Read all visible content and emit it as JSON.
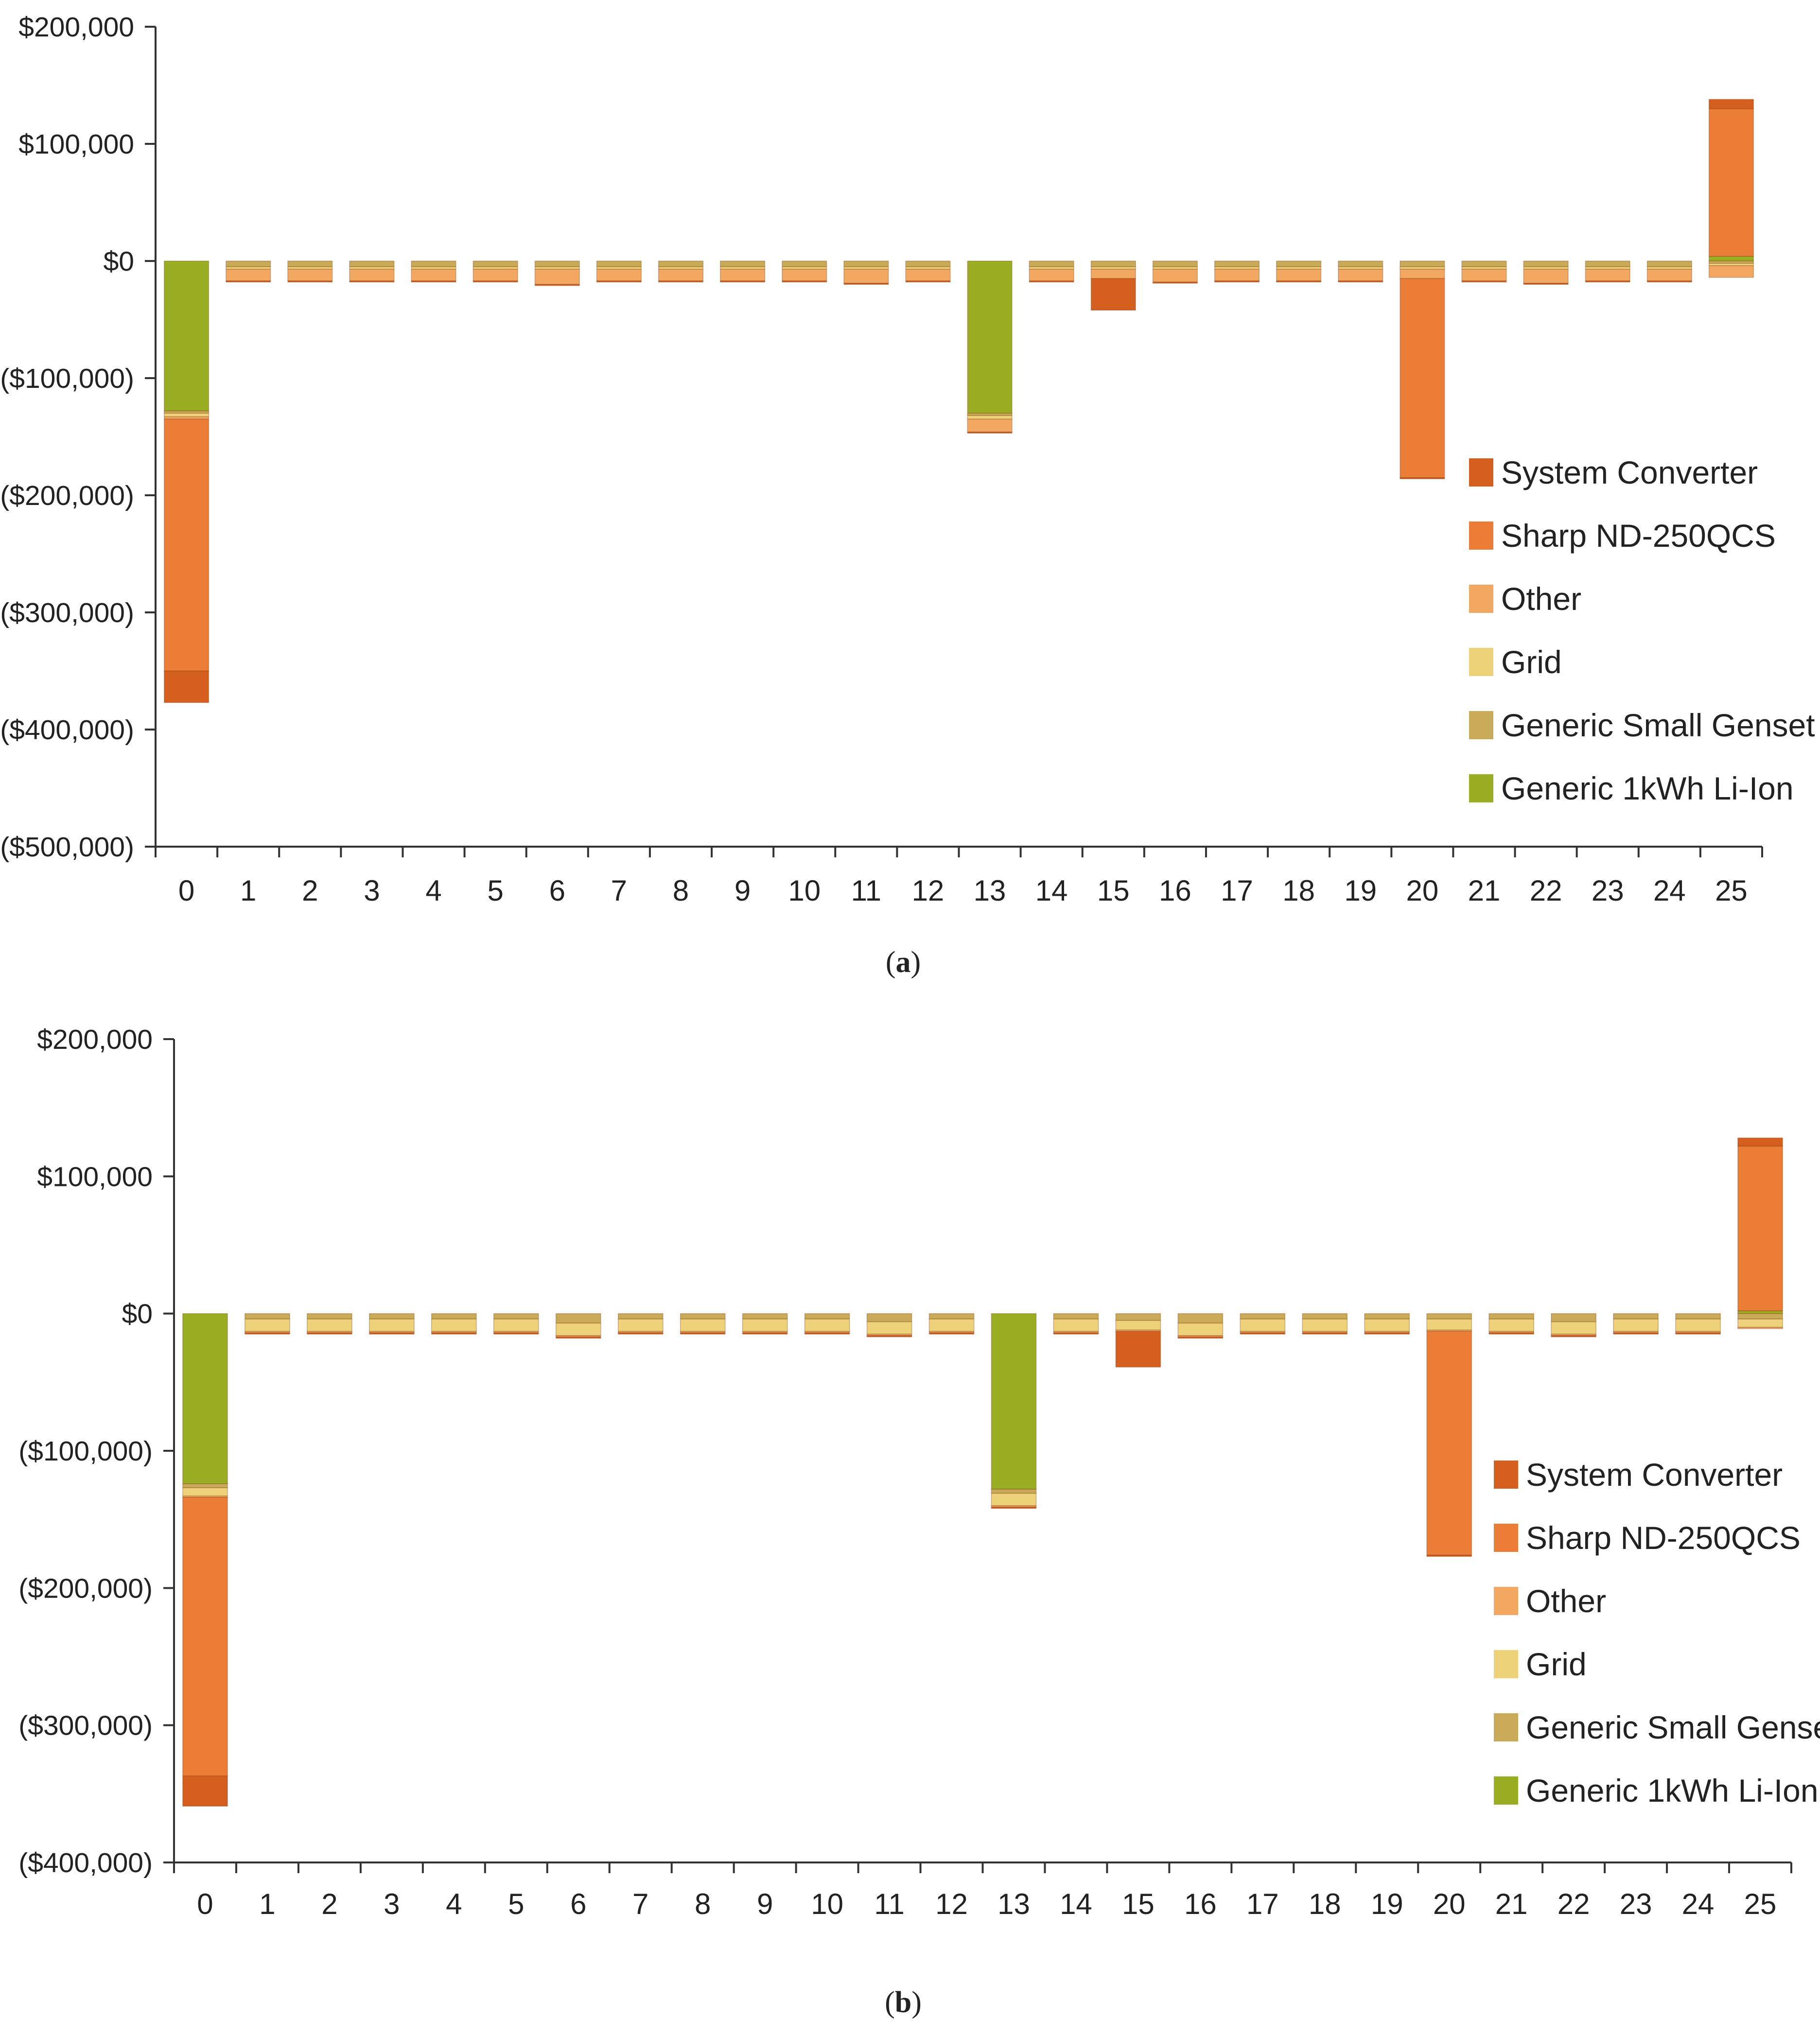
{
  "colors": {
    "System Converter": "#D45F1E",
    "Sharp ND-250QCS": "#EB7D37",
    "Other": "#F2A860",
    "Grid": "#EED27A",
    "Generic Small Genset": "#C8AA58",
    "Generic 1kWh Li-Ion": "#9AAE24",
    "axis": "#333333"
  },
  "chart_data": [
    {
      "type": "bar",
      "stacked": true,
      "caption": "a",
      "legend": [
        "System Converter",
        "Sharp ND-250QCS",
        "Other",
        "Grid",
        "Generic Small Genset",
        "Generic 1kWh Li-Ion"
      ],
      "categories": [
        "0",
        "1",
        "2",
        "3",
        "4",
        "5",
        "6",
        "7",
        "8",
        "9",
        "10",
        "11",
        "12",
        "13",
        "14",
        "15",
        "16",
        "17",
        "18",
        "19",
        "20",
        "21",
        "22",
        "23",
        "24",
        "25"
      ],
      "ylim": [
        -500000,
        200000
      ],
      "yticks": [
        200000,
        100000,
        0,
        -100000,
        -200000,
        -300000,
        -400000,
        -500000
      ],
      "ytick_labels": [
        "$200,000",
        "$100,000",
        "$0",
        "($100,000)",
        "($200,000)",
        "($300,000)",
        "($400,000)",
        "($500,000)"
      ],
      "series": [
        {
          "name": "Generic 1kWh Li-Ion",
          "values": [
            -128000,
            0,
            0,
            0,
            0,
            0,
            0,
            0,
            0,
            0,
            0,
            0,
            0,
            -130000,
            0,
            0,
            0,
            0,
            0,
            0,
            0,
            0,
            0,
            0,
            0,
            4000
          ]
        },
        {
          "name": "Generic Small Genset",
          "values": [
            -2000,
            -5000,
            -5000,
            -5000,
            -5000,
            -5000,
            -5000,
            -5000,
            -5000,
            -5000,
            -5000,
            -5000,
            -5000,
            -2000,
            -5000,
            -5000,
            -5000,
            -5000,
            -5000,
            -5000,
            -5000,
            -5000,
            -5000,
            -5000,
            -5000,
            -2000
          ]
        },
        {
          "name": "Grid",
          "values": [
            -3000,
            -2000,
            -2000,
            -2000,
            -2000,
            -2000,
            -2000,
            -2000,
            -2000,
            -2000,
            -2000,
            -2000,
            -2000,
            -3000,
            -2000,
            -2000,
            -2000,
            -2000,
            -2000,
            -2000,
            -2000,
            -2000,
            -2000,
            -2000,
            -2000,
            -2000
          ]
        },
        {
          "name": "Other",
          "values": [
            -2000,
            -10000,
            -10000,
            -10000,
            -10000,
            -10000,
            -13000,
            -10000,
            -10000,
            -10000,
            -10000,
            -12000,
            -10000,
            -11000,
            -10000,
            -8000,
            -11000,
            -10000,
            -10000,
            -10000,
            -8000,
            -10000,
            -12000,
            -10000,
            -10000,
            -10000
          ]
        },
        {
          "name": "Sharp ND-250QCS",
          "values": [
            -215000,
            0,
            0,
            0,
            0,
            0,
            0,
            0,
            0,
            0,
            0,
            0,
            0,
            0,
            0,
            0,
            0,
            0,
            0,
            0,
            -170000,
            0,
            0,
            0,
            0,
            126000
          ]
        },
        {
          "name": "System Converter",
          "values": [
            -27000,
            -1000,
            -1000,
            -1000,
            -1000,
            -1000,
            -1000,
            -1000,
            -1000,
            -1000,
            -1000,
            -1000,
            -1000,
            -1000,
            -1000,
            -27000,
            -1000,
            -1000,
            -1000,
            -1000,
            -1000,
            -1000,
            -1000,
            -1000,
            -1000,
            8000
          ]
        }
      ]
    },
    {
      "type": "bar",
      "stacked": true,
      "caption": "b",
      "legend": [
        "System Converter",
        "Sharp ND-250QCS",
        "Other",
        "Grid",
        "Generic Small Genset",
        "Generic 1kWh Li-Ion"
      ],
      "categories": [
        "0",
        "1",
        "2",
        "3",
        "4",
        "5",
        "6",
        "7",
        "8",
        "9",
        "10",
        "11",
        "12",
        "13",
        "14",
        "15",
        "16",
        "17",
        "18",
        "19",
        "20",
        "21",
        "22",
        "23",
        "24",
        "25"
      ],
      "ylim": [
        -400000,
        200000
      ],
      "yticks": [
        200000,
        100000,
        0,
        -100000,
        -200000,
        -300000,
        -400000
      ],
      "ytick_labels": [
        "$200,000",
        "$100,000",
        "$0",
        "($100,000)",
        "($200,000)",
        "($300,000)",
        "($400,000)"
      ],
      "series": [
        {
          "name": "Generic 1kWh Li-Ion",
          "values": [
            -124000,
            0,
            0,
            0,
            0,
            0,
            0,
            0,
            0,
            0,
            0,
            0,
            0,
            -128000,
            0,
            0,
            0,
            0,
            0,
            0,
            0,
            0,
            0,
            0,
            0,
            2000
          ]
        },
        {
          "name": "Generic Small Genset",
          "values": [
            -3000,
            -4000,
            -4000,
            -4000,
            -4000,
            -4000,
            -7000,
            -4000,
            -4000,
            -4000,
            -4000,
            -6000,
            -4000,
            -3000,
            -4000,
            -5000,
            -7000,
            -4000,
            -4000,
            -4000,
            -4000,
            -4000,
            -6000,
            -4000,
            -4000,
            -4000
          ]
        },
        {
          "name": "Grid",
          "values": [
            -6000,
            -9000,
            -9000,
            -9000,
            -9000,
            -9000,
            -9000,
            -9000,
            -9000,
            -9000,
            -9000,
            -9000,
            -9000,
            -9000,
            -9000,
            -7000,
            -9000,
            -9000,
            -9000,
            -9000,
            -8000,
            -9000,
            -9000,
            -9000,
            -9000,
            -6000
          ]
        },
        {
          "name": "Other",
          "values": [
            -1000,
            -1000,
            -1000,
            -1000,
            -1000,
            -1000,
            -1000,
            -1000,
            -1000,
            -1000,
            -1000,
            -1000,
            -1000,
            -1000,
            -1000,
            -1000,
            -1000,
            -1000,
            -1000,
            -1000,
            -1000,
            -1000,
            -1000,
            -1000,
            -1000,
            -1000
          ]
        },
        {
          "name": "Sharp ND-250QCS",
          "values": [
            -203000,
            0,
            0,
            0,
            0,
            0,
            0,
            0,
            0,
            0,
            0,
            0,
            0,
            0,
            0,
            0,
            0,
            0,
            0,
            0,
            -163000,
            0,
            0,
            0,
            0,
            120000
          ]
        },
        {
          "name": "System Converter",
          "values": [
            -22000,
            -1000,
            -1000,
            -1000,
            -1000,
            -1000,
            -1000,
            -1000,
            -1000,
            -1000,
            -1000,
            -1000,
            -1000,
            -1000,
            -1000,
            -26000,
            -1000,
            -1000,
            -1000,
            -1000,
            -1000,
            -1000,
            -1000,
            -1000,
            -1000,
            6000
          ]
        }
      ]
    }
  ]
}
